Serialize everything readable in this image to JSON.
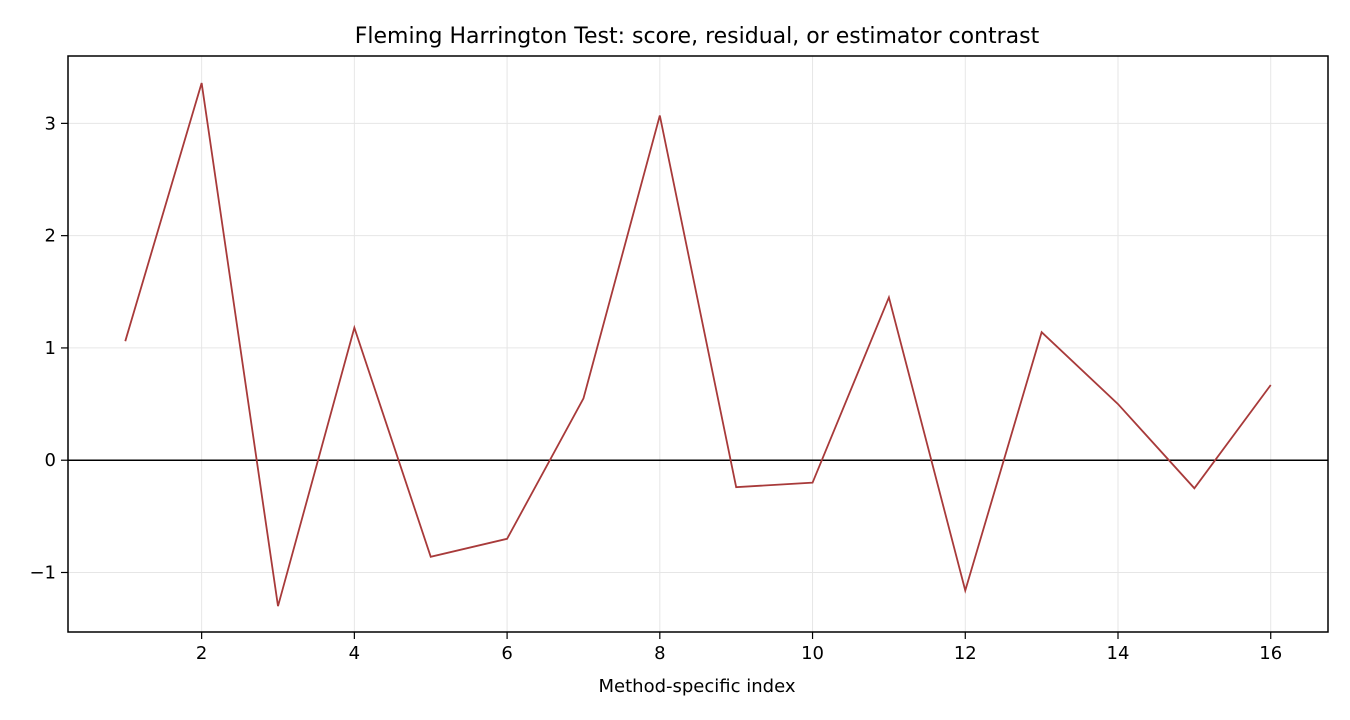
{
  "chart_data": {
    "type": "line",
    "title": "Fleming Harrington Test: score, residual, or estimator contrast",
    "xlabel": "Method-specific index",
    "ylabel": "",
    "xlim": [
      0.25,
      16.75
    ],
    "ylim": [
      -1.53,
      3.6
    ],
    "xticks": [
      2,
      4,
      6,
      8,
      10,
      12,
      14,
      16
    ],
    "yticks": [
      -1,
      0,
      1,
      2,
      3
    ],
    "ytick_labels": [
      "−1",
      "0",
      "1",
      "2",
      "3"
    ],
    "grid": true,
    "reference_line_y": 0,
    "line_color": "#a83a3a",
    "series": [
      {
        "x": [
          1,
          2,
          3,
          4,
          5,
          6,
          7,
          8,
          9,
          10,
          11,
          12,
          13,
          14,
          15,
          16
        ],
        "values": [
          1.06,
          3.36,
          -1.3,
          1.18,
          -0.86,
          -0.7,
          0.55,
          3.07,
          -0.24,
          -0.2,
          1.45,
          -1.16,
          1.14,
          0.5,
          -0.25,
          0.67
        ]
      }
    ]
  }
}
